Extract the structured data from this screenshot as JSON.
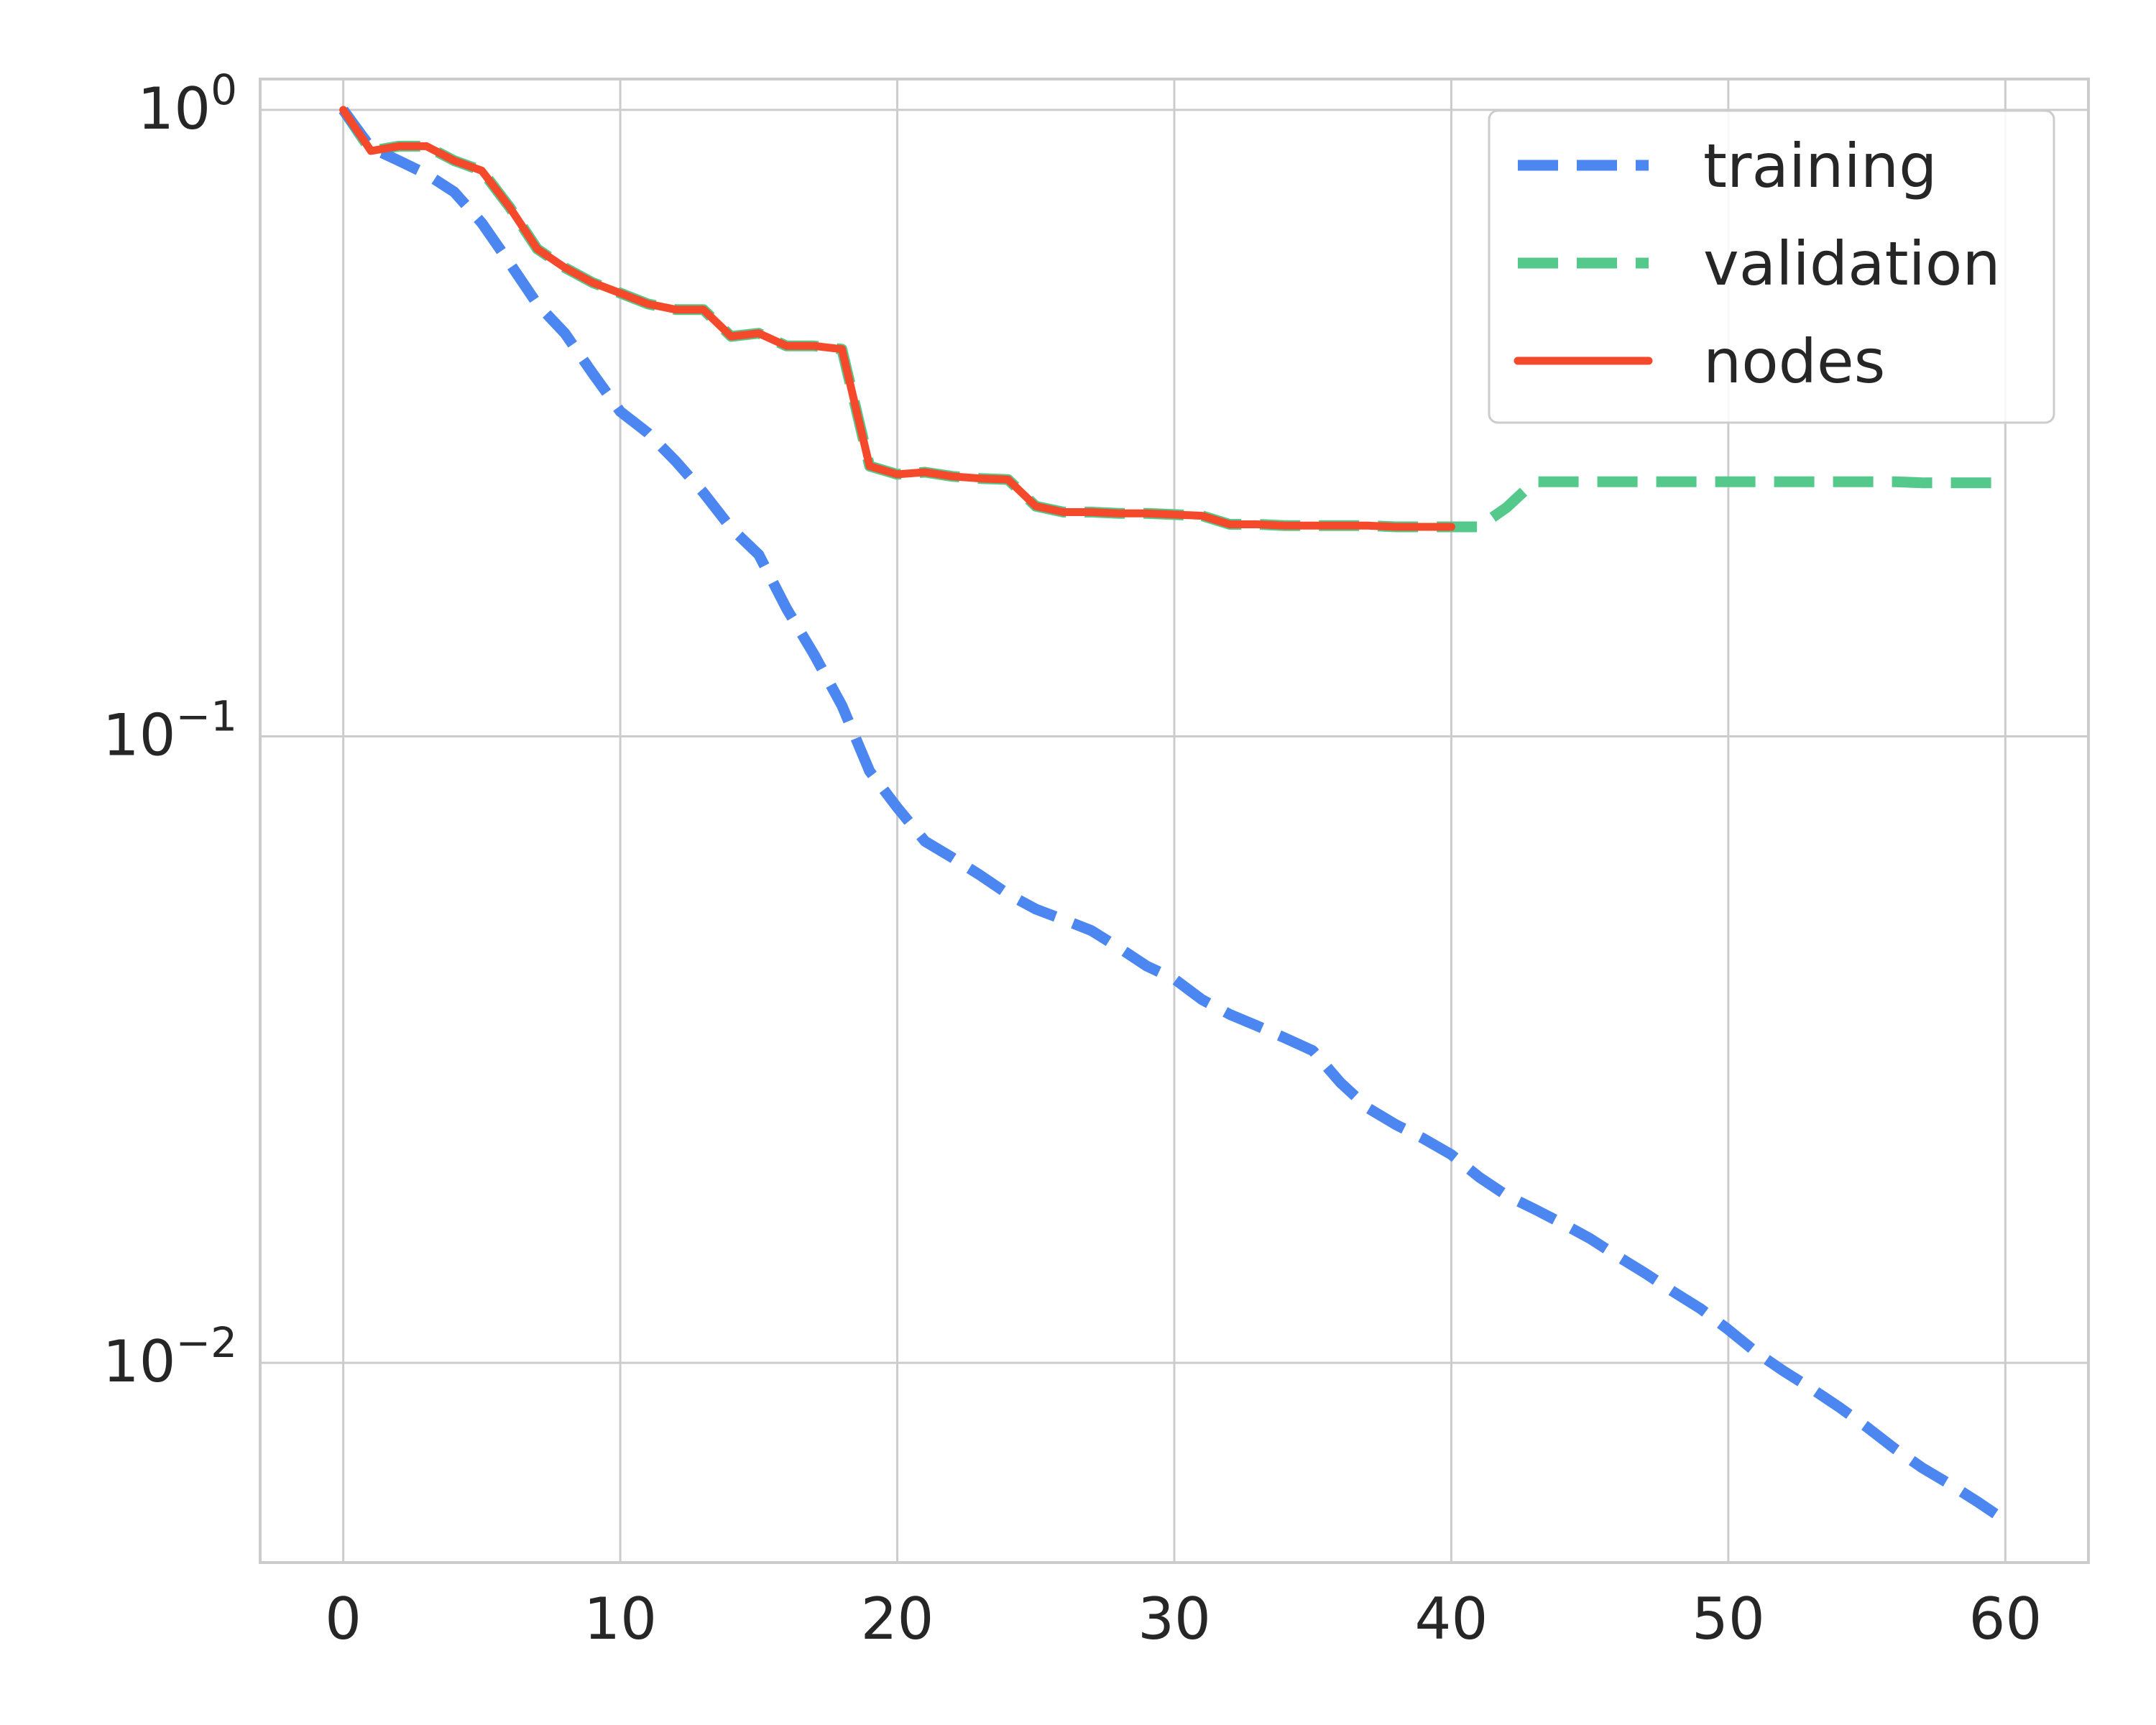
{
  "chart_data": {
    "type": "line",
    "title": "",
    "xlabel": "",
    "ylabel": "",
    "yscale": "log",
    "xlim": [
      -3,
      63
    ],
    "ylim": [
      0.0048,
      1.12
    ],
    "grid": true,
    "legend_position": "top-right",
    "x_ticks": [
      {
        "value": 0,
        "label": "0"
      },
      {
        "value": 10,
        "label": "10"
      },
      {
        "value": 20,
        "label": "20"
      },
      {
        "value": 30,
        "label": "30"
      },
      {
        "value": 40,
        "label": "40"
      },
      {
        "value": 50,
        "label": "50"
      },
      {
        "value": 60,
        "label": "60"
      }
    ],
    "y_ticks": [
      {
        "value": 1,
        "base": "10",
        "exp": "0"
      },
      {
        "value": 0.1,
        "base": "10",
        "exp": "−1"
      },
      {
        "value": 0.01,
        "base": "10",
        "exp": "−2"
      }
    ],
    "series": [
      {
        "name": "training",
        "color": "#4c86f0",
        "style": "dashed",
        "x": [
          0,
          1,
          2,
          3,
          4,
          5,
          6,
          7,
          8,
          9,
          10,
          11,
          12,
          13,
          14,
          15,
          16,
          17,
          18,
          19,
          20,
          21,
          22,
          23,
          24,
          25,
          26,
          27,
          28,
          29,
          30,
          31,
          32,
          33,
          34,
          35,
          36,
          37,
          38,
          39,
          40,
          41,
          42,
          43,
          44,
          45,
          46,
          47,
          48,
          49,
          50,
          51,
          52,
          53,
          54,
          55,
          56,
          57,
          58,
          59,
          60
        ],
        "y": [
          1.0,
          0.87,
          0.83,
          0.79,
          0.74,
          0.66,
          0.57,
          0.49,
          0.44,
          0.38,
          0.33,
          0.305,
          0.275,
          0.245,
          0.215,
          0.195,
          0.16,
          0.135,
          0.112,
          0.088,
          0.077,
          0.068,
          0.064,
          0.06,
          0.056,
          0.053,
          0.051,
          0.049,
          0.046,
          0.043,
          0.041,
          0.038,
          0.036,
          0.0345,
          0.033,
          0.0315,
          0.028,
          0.0255,
          0.024,
          0.0228,
          0.0215,
          0.0198,
          0.0185,
          0.0176,
          0.0167,
          0.0158,
          0.0148,
          0.0139,
          0.013,
          0.0122,
          0.0113,
          0.0104,
          0.0097,
          0.0091,
          0.0085,
          0.0079,
          0.0073,
          0.0068,
          0.0064,
          0.006,
          0.0056
        ]
      },
      {
        "name": "validation",
        "color": "#55c98b",
        "style": "dashed",
        "x": [
          0,
          1,
          2,
          3,
          4,
          5,
          6,
          7,
          8,
          9,
          10,
          11,
          12,
          13,
          14,
          15,
          16,
          17,
          18,
          19,
          20,
          21,
          22,
          23,
          24,
          25,
          26,
          27,
          28,
          29,
          30,
          31,
          32,
          33,
          34,
          35,
          36,
          37,
          38,
          39,
          40,
          41,
          42,
          43,
          44,
          45,
          46,
          47,
          48,
          49,
          50,
          51,
          52,
          53,
          54,
          55,
          56,
          57,
          58,
          59,
          60
        ],
        "y": [
          1.0,
          0.86,
          0.875,
          0.875,
          0.83,
          0.8,
          0.7,
          0.6,
          0.56,
          0.53,
          0.51,
          0.49,
          0.48,
          0.48,
          0.435,
          0.44,
          0.42,
          0.42,
          0.415,
          0.27,
          0.262,
          0.264,
          0.26,
          0.258,
          0.257,
          0.233,
          0.228,
          0.228,
          0.227,
          0.227,
          0.226,
          0.225,
          0.218,
          0.218,
          0.217,
          0.217,
          0.217,
          0.217,
          0.216,
          0.216,
          0.216,
          0.216,
          0.232,
          0.255,
          0.255,
          0.255,
          0.255,
          0.255,
          0.255,
          0.255,
          0.255,
          0.255,
          0.255,
          0.255,
          0.255,
          0.255,
          0.255,
          0.254,
          0.254,
          0.254,
          0.254
        ]
      },
      {
        "name": "nodes",
        "color": "#f4492b",
        "style": "solid",
        "x": [
          0,
          1,
          2,
          3,
          4,
          5,
          6,
          7,
          8,
          9,
          10,
          11,
          12,
          13,
          14,
          15,
          16,
          17,
          18,
          19,
          20,
          21,
          22,
          23,
          24,
          25,
          26,
          27,
          28,
          29,
          30,
          31,
          32,
          33,
          34,
          35,
          36,
          37,
          38,
          39,
          40
        ],
        "y": [
          1.0,
          0.86,
          0.875,
          0.875,
          0.83,
          0.8,
          0.7,
          0.6,
          0.56,
          0.53,
          0.51,
          0.49,
          0.48,
          0.48,
          0.435,
          0.44,
          0.42,
          0.42,
          0.415,
          0.27,
          0.262,
          0.264,
          0.26,
          0.258,
          0.257,
          0.233,
          0.228,
          0.228,
          0.227,
          0.227,
          0.226,
          0.225,
          0.218,
          0.218,
          0.217,
          0.217,
          0.217,
          0.217,
          0.216,
          0.216,
          0.216
        ]
      }
    ]
  }
}
